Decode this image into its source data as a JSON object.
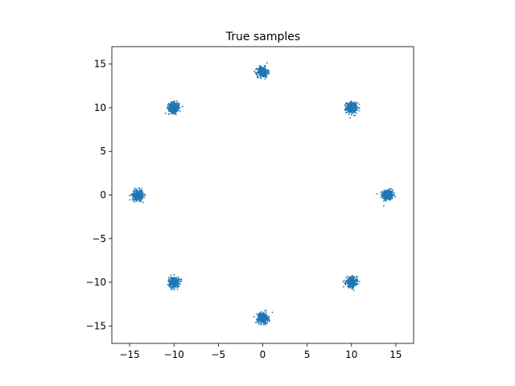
{
  "chart_data": {
    "type": "scatter",
    "title": "True samples",
    "xlabel": "",
    "ylabel": "",
    "xlim": [
      -17,
      17
    ],
    "ylim": [
      -17,
      17
    ],
    "xticks": [
      -15,
      -10,
      -5,
      0,
      5,
      10,
      15
    ],
    "yticks": [
      -15,
      -10,
      -5,
      0,
      5,
      10,
      15
    ],
    "xtick_labels": [
      "−15",
      "−10",
      "−5",
      "0",
      "5",
      "10",
      "15"
    ],
    "ytick_labels": [
      "−15",
      "−10",
      "−5",
      "0",
      "5",
      "10",
      "15"
    ],
    "grid": false,
    "legend": "none",
    "point_color": "#1f77b4",
    "series": [
      {
        "cluster_centers": [
          [
            14.1,
            0
          ],
          [
            10,
            10
          ],
          [
            0,
            14.1
          ],
          [
            -10,
            10
          ],
          [
            -14.1,
            0
          ],
          [
            -10,
            -10
          ],
          [
            0,
            -14.1
          ],
          [
            10,
            -10
          ]
        ],
        "cluster_spread_std": 0.3
      }
    ]
  }
}
